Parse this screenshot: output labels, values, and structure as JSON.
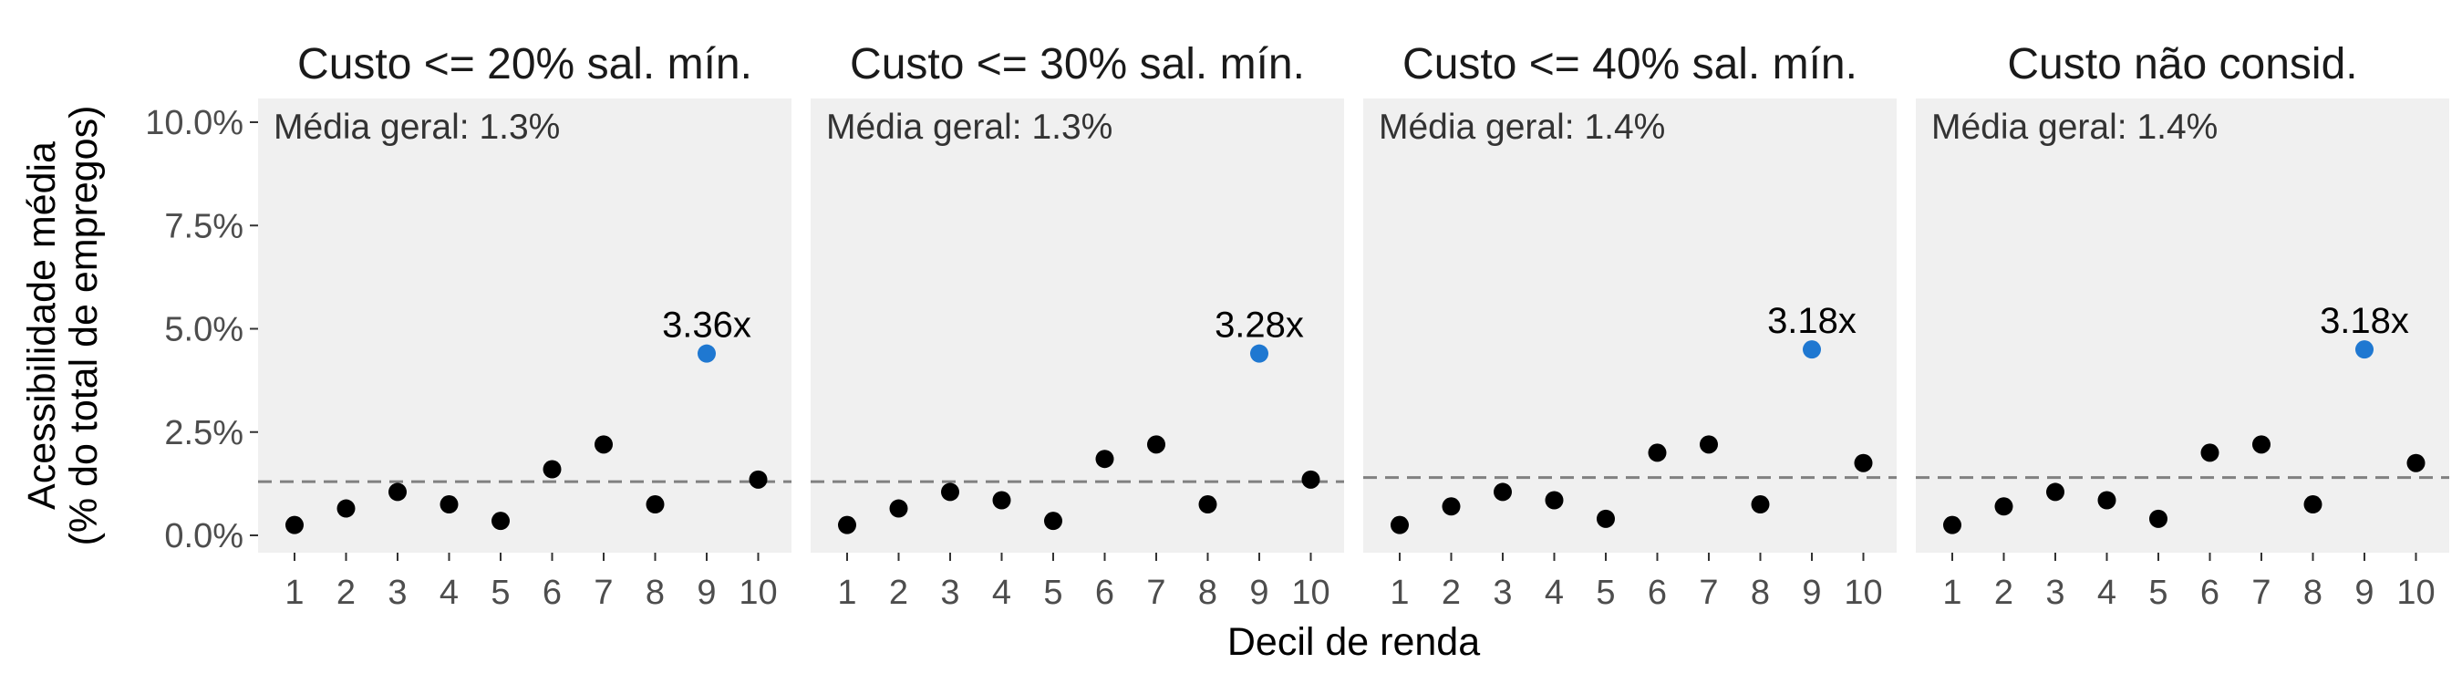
{
  "chart_data": {
    "type": "scatter",
    "xlabel": "Decil de renda",
    "ylabel_lines": [
      "Acessibilidade média",
      "(% do total de empregos)"
    ],
    "x": [
      1,
      2,
      3,
      4,
      5,
      6,
      7,
      8,
      9,
      10
    ],
    "ylim": [
      0,
      10
    ],
    "y_ticks": [
      0,
      2.5,
      5,
      7.5,
      10
    ],
    "y_tick_labels": [
      "0.0%",
      "2.5%",
      "5.0%",
      "7.5%",
      "10.0%"
    ],
    "grid": false,
    "highlight_decile": 9,
    "colors": {
      "point": "#000000",
      "highlight": "#1f78d1",
      "panel_bg": "#f0f0f0",
      "mean_line": "#808080"
    },
    "panels": [
      {
        "title": "Custo <= 20% sal. mín.",
        "mean_label": "Média geral: 1.3%",
        "mean": 1.3,
        "ratio_label": "3.36x",
        "values": [
          0.25,
          0.65,
          1.05,
          0.75,
          0.35,
          1.6,
          2.2,
          0.75,
          4.4,
          1.35
        ]
      },
      {
        "title": "Custo <= 30% sal. mín.",
        "mean_label": "Média geral: 1.3%",
        "mean": 1.3,
        "ratio_label": "3.28x",
        "values": [
          0.25,
          0.65,
          1.05,
          0.85,
          0.35,
          1.85,
          2.2,
          0.75,
          4.4,
          1.35
        ]
      },
      {
        "title": "Custo <= 40% sal. mín.",
        "mean_label": "Média geral: 1.4%",
        "mean": 1.4,
        "ratio_label": "3.18x",
        "values": [
          0.25,
          0.7,
          1.05,
          0.85,
          0.4,
          2.0,
          2.2,
          0.75,
          4.5,
          1.75
        ]
      },
      {
        "title": "Custo não consid.",
        "mean_label": "Média geral: 1.4%",
        "mean": 1.4,
        "ratio_label": "3.18x",
        "values": [
          0.25,
          0.7,
          1.05,
          0.85,
          0.4,
          2.0,
          2.2,
          0.75,
          4.5,
          1.75
        ]
      }
    ]
  }
}
